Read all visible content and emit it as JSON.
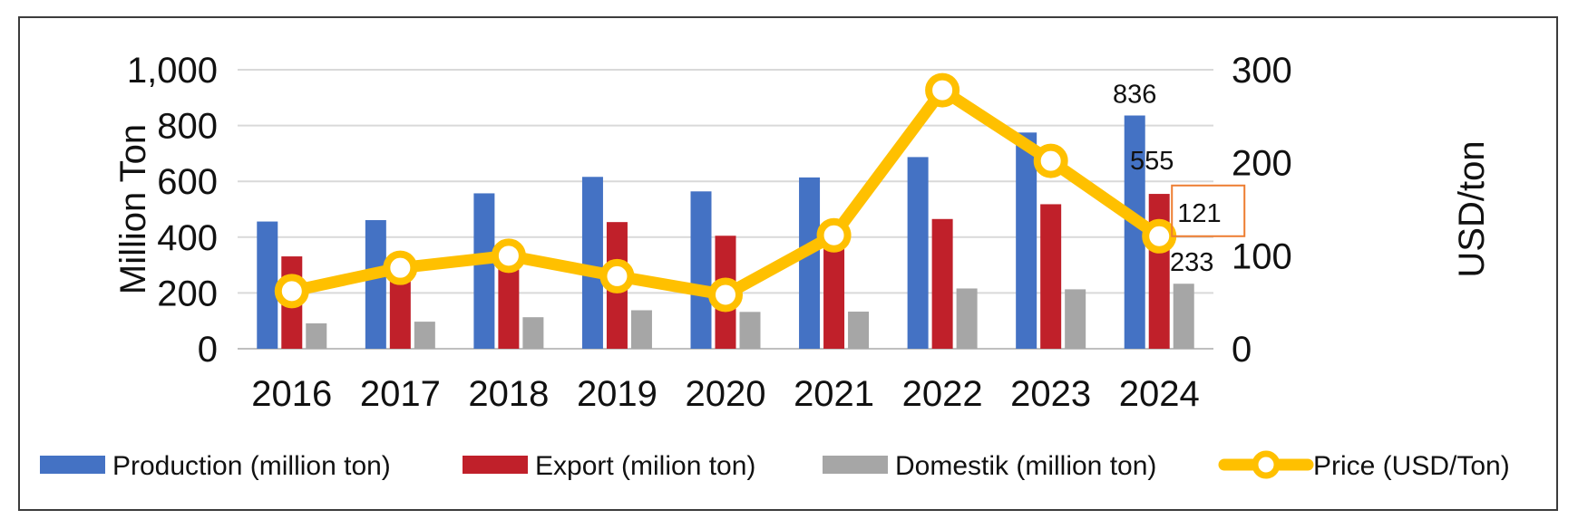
{
  "chart_data": {
    "type": "bar+line",
    "categories": [
      "2016",
      "2017",
      "2018",
      "2019",
      "2020",
      "2021",
      "2022",
      "2023",
      "2024"
    ],
    "series": [
      {
        "name": "Production (million ton)",
        "type": "bar",
        "axis": "left",
        "color": "#4472C4",
        "values": [
          456,
          461,
          557,
          616,
          564,
          614,
          687,
          775,
          836
        ]
      },
      {
        "name": "Export (milion ton)",
        "type": "bar",
        "axis": "left",
        "color": "#C0202A",
        "values": [
          331,
          290,
          300,
          454,
          405,
          380,
          465,
          518,
          555
        ]
      },
      {
        "name": "Domestik (million ton)",
        "type": "bar",
        "axis": "left",
        "color": "#A6A6A6",
        "values": [
          91,
          97,
          113,
          138,
          132,
          133,
          216,
          213,
          233
        ]
      },
      {
        "name": "Price (USD/Ton)",
        "type": "line",
        "axis": "right",
        "color": "#FFC000",
        "values": [
          62,
          87,
          100,
          78,
          58,
          122,
          278,
          202,
          121
        ]
      }
    ],
    "data_labels": [
      {
        "series": 0,
        "category": "2024",
        "text": "836"
      },
      {
        "series": 1,
        "category": "2024",
        "text": "555"
      },
      {
        "series": 3,
        "category": "2024",
        "text": "121",
        "highlight_color": "#ED7D31"
      },
      {
        "series": 2,
        "category": "2024",
        "text": "233"
      }
    ],
    "y_left": {
      "label": "Million Ton",
      "min": 0,
      "max": 1000,
      "step": 200,
      "tick_labels": [
        "0",
        "200",
        "400",
        "600",
        "800",
        "1,000"
      ]
    },
    "y_right": {
      "label": "USD/ton",
      "min": 0,
      "max": 300,
      "step": 100,
      "tick_labels": [
        "0",
        "100",
        "200",
        "300"
      ]
    },
    "grid": true,
    "legend_position": "bottom"
  }
}
